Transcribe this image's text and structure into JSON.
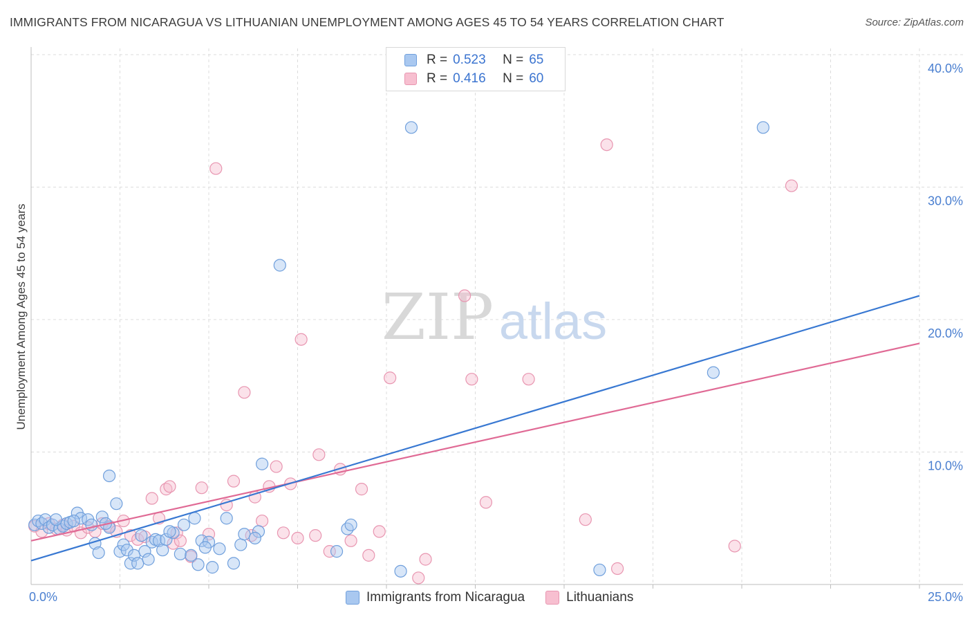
{
  "title": "IMMIGRANTS FROM NICARAGUA VS LITHUANIAN UNEMPLOYMENT AMONG AGES 45 TO 54 YEARS CORRELATION CHART",
  "source": "Source: ZipAtlas.com",
  "watermark": {
    "zip": "ZIP",
    "atlas": "atlas"
  },
  "legend": {
    "rows": [
      {
        "r_label": "R =",
        "r_value": "0.523",
        "n_label": "N =",
        "n_value": "65"
      },
      {
        "r_label": "R =",
        "r_value": "0.416",
        "n_label": "N =",
        "n_value": "60"
      }
    ]
  },
  "colors": {
    "blue_fill": "#a9c8f0",
    "blue_stroke": "#6f9fdc",
    "blue_line": "#3878d2",
    "pink_fill": "#f7bfd0",
    "pink_stroke": "#e895b0",
    "pink_line": "#e06a95",
    "grid": "#dcdcdc",
    "tick_text": "#4a7fd0"
  },
  "chart_data": {
    "type": "scatter",
    "title": "IMMIGRANTS FROM NICARAGUA VS LITHUANIAN UNEMPLOYMENT AMONG AGES 45 TO 54 YEARS CORRELATION CHART",
    "xlabel": "",
    "ylabel": "Unemployment Among Ages 45 to 54 years",
    "xlim": [
      0,
      25
    ],
    "ylim": [
      0,
      40
    ],
    "x_tick_labels": [
      "0.0%",
      "25.0%"
    ],
    "y_ticks": [
      10,
      20,
      30,
      40
    ],
    "y_tick_labels": [
      "10.0%",
      "20.0%",
      "30.0%",
      "40.0%"
    ],
    "grid": true,
    "series": [
      {
        "name": "Immigrants from Nicaragua",
        "r": 0.523,
        "n": 65,
        "trend": {
          "x": [
            0,
            25
          ],
          "y": [
            1.8,
            21.8
          ]
        },
        "points": [
          [
            0.1,
            4.5
          ],
          [
            0.2,
            4.8
          ],
          [
            0.3,
            4.6
          ],
          [
            0.4,
            4.9
          ],
          [
            0.5,
            4.3
          ],
          [
            0.6,
            4.5
          ],
          [
            0.8,
            4.2
          ],
          [
            0.9,
            4.4
          ],
          [
            1.0,
            4.6
          ],
          [
            1.1,
            4.7
          ],
          [
            1.3,
            5.4
          ],
          [
            1.4,
            5.0
          ],
          [
            1.6,
            4.9
          ],
          [
            1.7,
            4.5
          ],
          [
            1.8,
            3.1
          ],
          [
            1.9,
            2.4
          ],
          [
            2.0,
            5.1
          ],
          [
            2.2,
            4.3
          ],
          [
            2.2,
            8.2
          ],
          [
            2.4,
            6.1
          ],
          [
            2.5,
            2.5
          ],
          [
            2.6,
            3.0
          ],
          [
            2.7,
            2.6
          ],
          [
            2.8,
            1.6
          ],
          [
            2.9,
            2.2
          ],
          [
            3.0,
            1.6
          ],
          [
            3.1,
            3.7
          ],
          [
            3.2,
            2.5
          ],
          [
            3.3,
            1.9
          ],
          [
            3.4,
            3.2
          ],
          [
            3.5,
            3.4
          ],
          [
            3.6,
            3.3
          ],
          [
            3.7,
            2.6
          ],
          [
            3.8,
            3.4
          ],
          [
            4.0,
            3.9
          ],
          [
            4.2,
            2.3
          ],
          [
            4.3,
            4.5
          ],
          [
            4.5,
            2.2
          ],
          [
            4.6,
            5.0
          ],
          [
            4.7,
            1.5
          ],
          [
            4.8,
            3.3
          ],
          [
            5.0,
            3.2
          ],
          [
            5.1,
            1.3
          ],
          [
            5.3,
            2.7
          ],
          [
            5.5,
            5.0
          ],
          [
            5.7,
            1.6
          ],
          [
            5.9,
            3.0
          ],
          [
            6.0,
            3.8
          ],
          [
            6.4,
            4.0
          ],
          [
            6.5,
            9.1
          ],
          [
            7.0,
            24.1
          ],
          [
            8.6,
            2.5
          ],
          [
            8.9,
            4.2
          ],
          [
            9.0,
            4.5
          ],
          [
            10.4,
            1.0
          ],
          [
            10.7,
            34.5
          ],
          [
            16.0,
            1.1
          ],
          [
            19.2,
            16.0
          ],
          [
            20.6,
            34.5
          ],
          [
            0.7,
            4.9
          ],
          [
            1.2,
            4.8
          ],
          [
            2.1,
            4.6
          ],
          [
            3.9,
            4.0
          ],
          [
            4.9,
            2.8
          ],
          [
            6.3,
            3.5
          ]
        ]
      },
      {
        "name": "Lithuanians",
        "r": 0.416,
        "n": 60,
        "trend": {
          "x": [
            0,
            25
          ],
          "y": [
            3.3,
            18.2
          ]
        },
        "points": [
          [
            0.1,
            4.4
          ],
          [
            0.3,
            4.0
          ],
          [
            0.5,
            4.6
          ],
          [
            0.7,
            4.2
          ],
          [
            0.9,
            4.5
          ],
          [
            1.0,
            4.1
          ],
          [
            1.2,
            4.4
          ],
          [
            1.4,
            3.9
          ],
          [
            1.6,
            4.3
          ],
          [
            1.8,
            4.0
          ],
          [
            2.0,
            4.6
          ],
          [
            2.2,
            4.4
          ],
          [
            2.4,
            4.0
          ],
          [
            2.6,
            4.8
          ],
          [
            2.8,
            3.7
          ],
          [
            3.0,
            3.4
          ],
          [
            3.2,
            3.6
          ],
          [
            3.4,
            6.5
          ],
          [
            3.6,
            5.0
          ],
          [
            3.8,
            7.2
          ],
          [
            3.9,
            7.4
          ],
          [
            4.0,
            3.1
          ],
          [
            4.1,
            3.9
          ],
          [
            4.2,
            3.3
          ],
          [
            4.5,
            2.1
          ],
          [
            4.8,
            7.3
          ],
          [
            5.0,
            3.8
          ],
          [
            5.2,
            31.4
          ],
          [
            5.5,
            6.0
          ],
          [
            5.7,
            7.8
          ],
          [
            6.0,
            14.5
          ],
          [
            6.2,
            3.7
          ],
          [
            6.3,
            6.6
          ],
          [
            6.5,
            4.8
          ],
          [
            6.7,
            7.4
          ],
          [
            6.9,
            8.9
          ],
          [
            7.1,
            3.9
          ],
          [
            7.3,
            7.6
          ],
          [
            7.5,
            3.5
          ],
          [
            7.6,
            18.5
          ],
          [
            8.0,
            3.7
          ],
          [
            8.1,
            9.8
          ],
          [
            8.4,
            2.5
          ],
          [
            8.7,
            8.7
          ],
          [
            9.0,
            3.3
          ],
          [
            9.3,
            7.2
          ],
          [
            9.5,
            2.2
          ],
          [
            9.8,
            4.0
          ],
          [
            10.1,
            15.6
          ],
          [
            10.9,
            0.5
          ],
          [
            11.1,
            1.9
          ],
          [
            12.2,
            21.8
          ],
          [
            12.4,
            15.5
          ],
          [
            12.8,
            6.2
          ],
          [
            14.0,
            15.5
          ],
          [
            15.6,
            4.9
          ],
          [
            16.2,
            33.2
          ],
          [
            16.5,
            1.2
          ],
          [
            19.8,
            2.9
          ],
          [
            21.4,
            30.1
          ]
        ]
      }
    ]
  },
  "bottom_legend": [
    "Immigrants from Nicaragua",
    "Lithuanians"
  ]
}
